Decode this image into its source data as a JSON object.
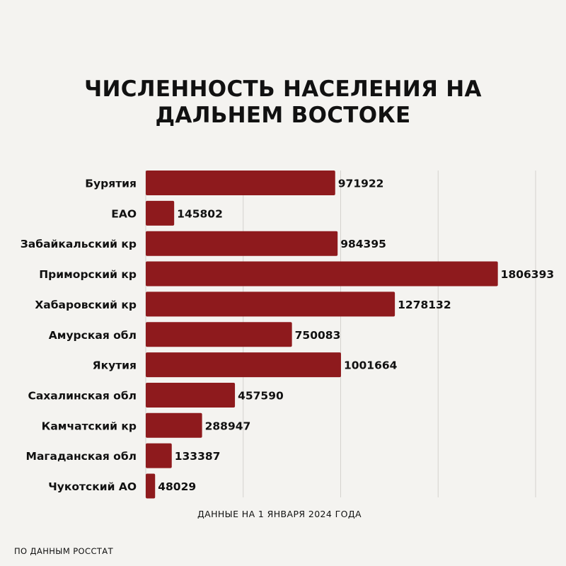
{
  "title_lines": [
    "ЧИСЛЕННОСТЬ НАСЕЛЕНИЯ НА",
    "ДАЛЬНЕМ ВОСТОКЕ"
  ],
  "note": "ДАННЫЕ НА 1 ЯНВАРЯ 2024 ГОДА",
  "source": "ПО ДАННЫМ РОССТАТ",
  "colors": {
    "bar": "#8e1a1d",
    "grid": "#d4d2ce",
    "background": "#f4f3f0"
  },
  "chart_data": {
    "type": "bar",
    "orientation": "horizontal",
    "title": "ЧИСЛЕННОСТЬ НАСЕЛЕНИЯ НА ДАЛЬНЕМ ВОСТОКЕ",
    "categories": [
      "Бурятия",
      "ЕАО",
      "Забайкальский кр",
      "Приморский кр",
      "Хабаровский кр",
      "Амурская обл",
      "Якутия",
      "Сахалинская обл",
      "Камчатский кр",
      "Магаданская обл",
      "Чукотский АО"
    ],
    "values": [
      971922,
      145802,
      984395,
      1806393,
      1278132,
      750083,
      1001664,
      457590,
      288947,
      133387,
      48029
    ],
    "xlim": [
      0,
      2000000
    ],
    "grid": true,
    "legend": "none"
  }
}
